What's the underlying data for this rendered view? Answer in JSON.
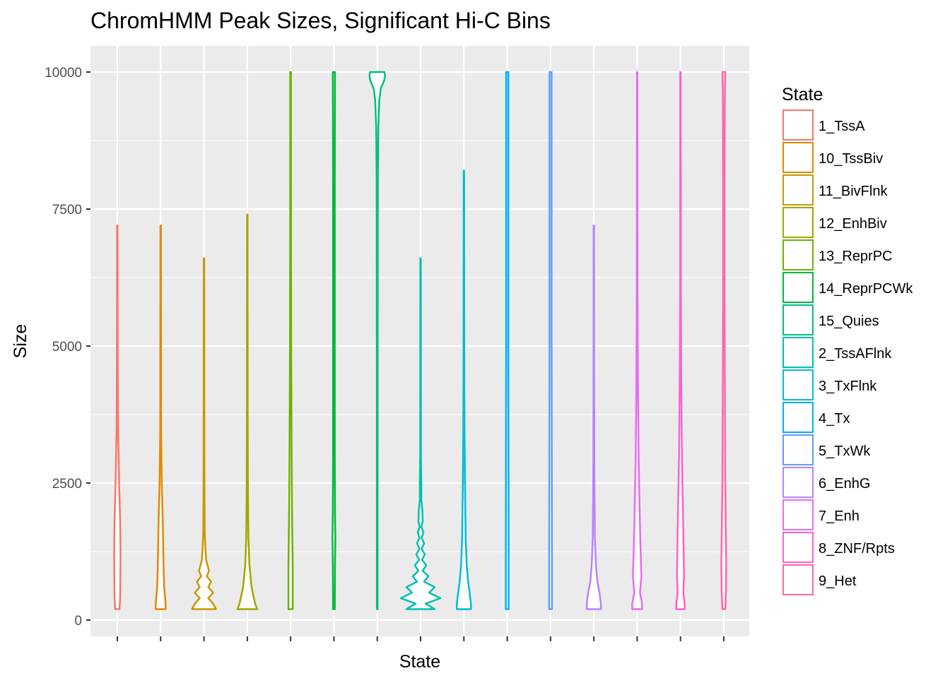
{
  "chart_data": {
    "type": "violin",
    "title": "ChromHMM Peak Sizes, Significant Hi-C Bins",
    "xlabel": "State",
    "ylabel": "Size",
    "ylim": [
      0,
      10400
    ],
    "yticks": [
      0,
      2500,
      5000,
      7500,
      10000
    ],
    "xticks_labeled": false,
    "grid": true,
    "legend": {
      "title": "State",
      "position": "right"
    },
    "series": [
      {
        "name": "1_TssA",
        "color": "#F8766D",
        "min": 200,
        "max": 7200,
        "profile": [
          [
            200,
            3
          ],
          [
            400,
            4
          ],
          [
            1200,
            4.5
          ],
          [
            1800,
            4
          ],
          [
            2500,
            2.5
          ],
          [
            3500,
            1
          ],
          [
            5000,
            0.5
          ],
          [
            7200,
            0.3
          ]
        ]
      },
      {
        "name": "10_TssBiv",
        "color": "#E58700",
        "min": 200,
        "max": 7200,
        "profile": [
          [
            200,
            7
          ],
          [
            300,
            7
          ],
          [
            600,
            5
          ],
          [
            1000,
            4
          ],
          [
            1800,
            3
          ],
          [
            2500,
            1.5
          ],
          [
            3500,
            0.6
          ],
          [
            7200,
            0.3
          ]
        ]
      },
      {
        "name": "11_BivFlnk",
        "color": "#C99800",
        "min": 200,
        "max": 6600,
        "profile": [
          [
            200,
            17
          ],
          [
            300,
            13
          ],
          [
            400,
            6
          ],
          [
            500,
            13
          ],
          [
            600,
            6
          ],
          [
            700,
            10
          ],
          [
            800,
            4
          ],
          [
            900,
            7
          ],
          [
            1100,
            3
          ],
          [
            1300,
            2
          ],
          [
            1600,
            1
          ],
          [
            2500,
            0.6
          ],
          [
            6600,
            0.3
          ]
        ]
      },
      {
        "name": "12_EnhBiv",
        "color": "#A3A500",
        "min": 200,
        "max": 7400,
        "profile": [
          [
            200,
            14
          ],
          [
            300,
            11
          ],
          [
            600,
            6
          ],
          [
            1000,
            3
          ],
          [
            1500,
            1.5
          ],
          [
            2500,
            0.8
          ],
          [
            4000,
            0.5
          ],
          [
            7400,
            0.3
          ]
        ]
      },
      {
        "name": "13_ReprPC",
        "color": "#6BB100",
        "min": 200,
        "max": 10000,
        "profile": [
          [
            200,
            3
          ],
          [
            500,
            3
          ],
          [
            1000,
            3
          ],
          [
            2000,
            2
          ],
          [
            3000,
            1.5
          ],
          [
            5000,
            0.8
          ],
          [
            8000,
            0.5
          ],
          [
            10000,
            0.5
          ]
        ]
      },
      {
        "name": "14_ReprPCWk",
        "color": "#00BA38",
        "min": 200,
        "max": 10000,
        "profile": [
          [
            200,
            1.2
          ],
          [
            1000,
            1.5
          ],
          [
            1500,
            2
          ],
          [
            2000,
            1.5
          ],
          [
            3000,
            1.2
          ],
          [
            5000,
            1.2
          ],
          [
            8000,
            1.2
          ],
          [
            10000,
            1.5
          ]
        ]
      },
      {
        "name": "15_Quies",
        "color": "#00BF7D",
        "min": 200,
        "max": 10000,
        "profile": [
          [
            200,
            0.5
          ],
          [
            2000,
            0.5
          ],
          [
            5000,
            0.6
          ],
          [
            8000,
            0.8
          ],
          [
            9000,
            1.5
          ],
          [
            9500,
            3
          ],
          [
            9700,
            5
          ],
          [
            9850,
            10
          ],
          [
            9950,
            11
          ],
          [
            10000,
            10
          ]
        ]
      },
      {
        "name": "2_TssAFlnk",
        "color": "#00C0AF",
        "min": 200,
        "max": 6600,
        "profile": [
          [
            200,
            20
          ],
          [
            300,
            7
          ],
          [
            400,
            28
          ],
          [
            500,
            12
          ],
          [
            600,
            20
          ],
          [
            700,
            5
          ],
          [
            800,
            11
          ],
          [
            900,
            3
          ],
          [
            1000,
            8
          ],
          [
            1100,
            2
          ],
          [
            1200,
            6
          ],
          [
            1300,
            1.5
          ],
          [
            1400,
            5
          ],
          [
            1500,
            1.5
          ],
          [
            1600,
            4
          ],
          [
            1700,
            1.2
          ],
          [
            1800,
            3
          ],
          [
            2000,
            2.5
          ],
          [
            2200,
            1
          ],
          [
            2500,
            1
          ],
          [
            3000,
            0.5
          ],
          [
            6600,
            0.3
          ]
        ]
      },
      {
        "name": "3_TxFlnk",
        "color": "#00BCD8",
        "min": 200,
        "max": 8200,
        "profile": [
          [
            200,
            10
          ],
          [
            300,
            10
          ],
          [
            500,
            8
          ],
          [
            700,
            6
          ],
          [
            1000,
            4
          ],
          [
            1500,
            2.5
          ],
          [
            2500,
            1.5
          ],
          [
            3500,
            0.8
          ],
          [
            5000,
            0.5
          ],
          [
            8200,
            0.3
          ]
        ]
      },
      {
        "name": "4_Tx",
        "color": "#00B0F6",
        "min": 200,
        "max": 10000,
        "profile": [
          [
            200,
            2
          ],
          [
            1000,
            2
          ],
          [
            5000,
            1.5
          ],
          [
            10000,
            1.5
          ]
        ]
      },
      {
        "name": "5_TxWk",
        "color": "#619CFF",
        "min": 200,
        "max": 10000,
        "profile": [
          [
            200,
            2
          ],
          [
            1000,
            2
          ],
          [
            5000,
            1.5
          ],
          [
            10000,
            1.5
          ]
        ]
      },
      {
        "name": "6_EnhG",
        "color": "#B983FF",
        "min": 200,
        "max": 7200,
        "profile": [
          [
            200,
            10
          ],
          [
            300,
            10
          ],
          [
            500,
            8
          ],
          [
            700,
            5
          ],
          [
            1000,
            3
          ],
          [
            1500,
            1.5
          ],
          [
            2500,
            0.8
          ],
          [
            4000,
            0.5
          ],
          [
            7200,
            0.3
          ]
        ]
      },
      {
        "name": "7_Enh",
        "color": "#E76BF3",
        "min": 200,
        "max": 10000,
        "profile": [
          [
            200,
            7
          ],
          [
            300,
            7
          ],
          [
            500,
            4
          ],
          [
            800,
            6
          ],
          [
            1200,
            5
          ],
          [
            2000,
            3.5
          ],
          [
            3000,
            2
          ],
          [
            4500,
            1
          ],
          [
            6000,
            0.5
          ],
          [
            10000,
            0.3
          ]
        ]
      },
      {
        "name": "8_ZNF/Rpts",
        "color": "#FD61D1",
        "min": 200,
        "max": 10000,
        "profile": [
          [
            200,
            6
          ],
          [
            300,
            6
          ],
          [
            500,
            4
          ],
          [
            800,
            5
          ],
          [
            1200,
            4.5
          ],
          [
            2000,
            3.5
          ],
          [
            3000,
            2
          ],
          [
            4500,
            1
          ],
          [
            6000,
            0.5
          ],
          [
            10000,
            0.3
          ]
        ]
      },
      {
        "name": "9_Het",
        "color": "#FF67A4",
        "min": 200,
        "max": 10000,
        "profile": [
          [
            200,
            2
          ],
          [
            500,
            3
          ],
          [
            1000,
            3.5
          ],
          [
            1500,
            3
          ],
          [
            2500,
            2
          ],
          [
            4000,
            1.5
          ],
          [
            6000,
            1
          ],
          [
            8000,
            1
          ],
          [
            9000,
            1.2
          ],
          [
            9700,
            1.5
          ],
          [
            10000,
            2
          ]
        ]
      }
    ]
  }
}
